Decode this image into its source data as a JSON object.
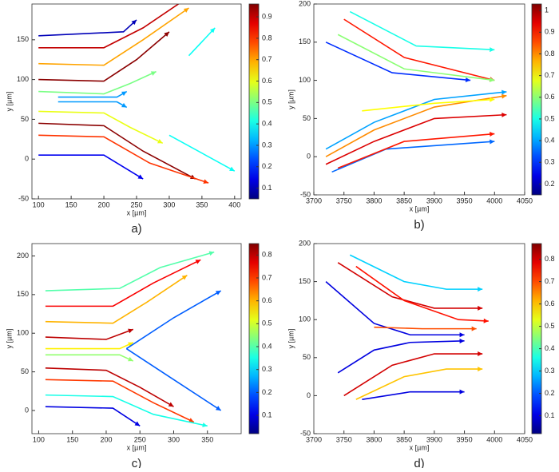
{
  "chart_data": [
    {
      "type": "streamline",
      "caption": "a)",
      "xlabel": "x [µm]",
      "ylabel": "y [µm]",
      "xlim": [
        90,
        410
      ],
      "ylim": [
        -50,
        195
      ],
      "xticks": [
        100,
        150,
        200,
        250,
        300,
        350,
        400
      ],
      "yticks": [
        -50,
        0,
        50,
        100,
        150
      ],
      "clim": [
        0.05,
        0.96
      ],
      "cticks": [
        0.1,
        0.2,
        0.3,
        0.4,
        0.5,
        0.6,
        0.7,
        0.8,
        0.9
      ],
      "lines": [
        {
          "x": [
            100,
            230,
            250
          ],
          "y": [
            155,
            160,
            175
          ],
          "value": 0.1
        },
        {
          "x": [
            100,
            200,
            260,
            350
          ],
          "y": [
            140,
            140,
            165,
            215
          ],
          "value": 0.9
        },
        {
          "x": [
            100,
            200,
            260,
            330
          ],
          "y": [
            120,
            118,
            150,
            190
          ],
          "value": 0.7
        },
        {
          "x": [
            100,
            200,
            250,
            300
          ],
          "y": [
            100,
            98,
            125,
            160
          ],
          "value": 0.95
        },
        {
          "x": [
            100,
            200,
            240,
            280
          ],
          "y": [
            85,
            82,
            95,
            110
          ],
          "value": 0.5
        },
        {
          "x": [
            130,
            220,
            235
          ],
          "y": [
            78,
            78,
            85
          ],
          "value": 0.3
        },
        {
          "x": [
            130,
            220,
            235
          ],
          "y": [
            72,
            72,
            65
          ],
          "value": 0.3
        },
        {
          "x": [
            100,
            200,
            240,
            290
          ],
          "y": [
            60,
            58,
            40,
            20
          ],
          "value": 0.6
        },
        {
          "x": [
            100,
            200,
            260,
            340
          ],
          "y": [
            45,
            42,
            10,
            -25
          ],
          "value": 0.95
        },
        {
          "x": [
            100,
            200,
            270,
            360
          ],
          "y": [
            30,
            28,
            -5,
            -30
          ],
          "value": 0.8
        },
        {
          "x": [
            100,
            200,
            260
          ],
          "y": [
            5,
            5,
            -25
          ],
          "value": 0.15
        },
        {
          "x": [
            300,
            400
          ],
          "y": [
            30,
            -15
          ],
          "value": 0.4
        },
        {
          "x": [
            330,
            370
          ],
          "y": [
            130,
            165
          ],
          "value": 0.4
        }
      ]
    },
    {
      "type": "streamline",
      "caption": "b)",
      "xlabel": "x [µm]",
      "ylabel": "y [µm]",
      "xlim": [
        3700,
        4050
      ],
      "ylim": [
        -50,
        200
      ],
      "xticks": [
        3700,
        3750,
        3800,
        3850,
        3900,
        3950,
        4000,
        4050
      ],
      "yticks": [
        -50,
        0,
        50,
        100,
        150,
        200
      ],
      "clim": [
        0.15,
        1.03
      ],
      "cticks": [
        0.2,
        0.3,
        0.4,
        0.5,
        0.6,
        0.7,
        0.8,
        0.9,
        1
      ],
      "lines": [
        {
          "x": [
            3750,
            3850,
            4000
          ],
          "y": [
            180,
            130,
            100
          ],
          "value": 0.9
        },
        {
          "x": [
            3740,
            3850,
            4000
          ],
          "y": [
            160,
            115,
            100
          ],
          "value": 0.6
        },
        {
          "x": [
            3760,
            3870,
            4000
          ],
          "y": [
            190,
            145,
            140
          ],
          "value": 0.5
        },
        {
          "x": [
            3720,
            3830,
            3960
          ],
          "y": [
            150,
            110,
            100
          ],
          "value": 0.3
        },
        {
          "x": [
            3720,
            3800,
            3900,
            4020
          ],
          "y": [
            -10,
            20,
            50,
            55
          ],
          "value": 0.95
        },
        {
          "x": [
            3720,
            3800,
            3900,
            4020
          ],
          "y": [
            0,
            35,
            65,
            80
          ],
          "value": 0.8
        },
        {
          "x": [
            3720,
            3800,
            3900,
            4020
          ],
          "y": [
            10,
            45,
            75,
            85
          ],
          "value": 0.4
        },
        {
          "x": [
            3730,
            3820,
            4000
          ],
          "y": [
            -20,
            10,
            20
          ],
          "value": 0.35
        },
        {
          "x": [
            3740,
            3850,
            4000
          ],
          "y": [
            -15,
            20,
            30
          ],
          "value": 0.9
        },
        {
          "x": [
            3780,
            3900,
            4000
          ],
          "y": [
            60,
            70,
            75
          ],
          "value": 0.7
        }
      ]
    },
    {
      "type": "streamline",
      "caption": "c)",
      "xlabel": "x [µm]",
      "ylabel": "y [µm]",
      "xlim": [
        90,
        400
      ],
      "ylim": [
        -30,
        216
      ],
      "xticks": [
        100,
        150,
        200,
        250,
        300,
        350
      ],
      "yticks": [
        0,
        50,
        100,
        150,
        200
      ],
      "clim": [
        0.02,
        0.85
      ],
      "cticks": [
        0.1,
        0.2,
        0.3,
        0.4,
        0.5,
        0.6,
        0.7,
        0.8
      ],
      "lines": [
        {
          "x": [
            110,
            220,
            280,
            360
          ],
          "y": [
            155,
            158,
            185,
            205
          ],
          "value": 0.4
        },
        {
          "x": [
            110,
            210,
            270,
            340
          ],
          "y": [
            135,
            135,
            165,
            195
          ],
          "value": 0.75
        },
        {
          "x": [
            110,
            210,
            260,
            320
          ],
          "y": [
            115,
            113,
            140,
            175
          ],
          "value": 0.6
        },
        {
          "x": [
            110,
            200,
            240
          ],
          "y": [
            95,
            92,
            105
          ],
          "value": 0.8
        },
        {
          "x": [
            110,
            220,
            240
          ],
          "y": [
            80,
            80,
            88
          ],
          "value": 0.55
        },
        {
          "x": [
            110,
            220,
            240
          ],
          "y": [
            72,
            72,
            64
          ],
          "value": 0.45
        },
        {
          "x": [
            110,
            200,
            250,
            300
          ],
          "y": [
            55,
            52,
            30,
            5
          ],
          "value": 0.8
        },
        {
          "x": [
            110,
            210,
            270,
            330
          ],
          "y": [
            40,
            38,
            10,
            -15
          ],
          "value": 0.7
        },
        {
          "x": [
            110,
            210,
            270,
            350
          ],
          "y": [
            20,
            18,
            -5,
            -20
          ],
          "value": 0.35
        },
        {
          "x": [
            110,
            210,
            250
          ],
          "y": [
            5,
            3,
            -20
          ],
          "value": 0.1
        },
        {
          "x": [
            230,
            300,
            370
          ],
          "y": [
            80,
            40,
            0
          ],
          "value": 0.2
        },
        {
          "x": [
            230,
            300,
            370
          ],
          "y": [
            80,
            120,
            155
          ],
          "value": 0.2
        }
      ]
    },
    {
      "type": "streamline",
      "caption": "d)",
      "xlabel": "x [µm]",
      "ylabel": "y [µm]",
      "xlim": [
        3700,
        4050
      ],
      "ylim": [
        -50,
        200
      ],
      "xticks": [
        3700,
        3750,
        3800,
        3850,
        3900,
        3950,
        4000,
        4050
      ],
      "yticks": [
        -50,
        0,
        50,
        100,
        150,
        200
      ],
      "clim": [
        0.02,
        0.87
      ],
      "cticks": [
        0.1,
        0.2,
        0.3,
        0.4,
        0.5,
        0.6,
        0.7,
        0.8
      ],
      "lines": [
        {
          "x": [
            3720,
            3800,
            3860,
            3950
          ],
          "y": [
            150,
            95,
            80,
            80
          ],
          "value": 0.1
        },
        {
          "x": [
            3740,
            3830,
            3900,
            3980
          ],
          "y": [
            175,
            130,
            115,
            115
          ],
          "value": 0.8
        },
        {
          "x": [
            3760,
            3850,
            3920,
            3980
          ],
          "y": [
            185,
            150,
            140,
            140
          ],
          "value": 0.3
        },
        {
          "x": [
            3770,
            3850,
            3940,
            3990
          ],
          "y": [
            170,
            125,
            100,
            98
          ],
          "value": 0.75
        },
        {
          "x": [
            3740,
            3800,
            3860,
            3950
          ],
          "y": [
            30,
            60,
            70,
            72
          ],
          "value": 0.1
        },
        {
          "x": [
            3750,
            3830,
            3900,
            3980
          ],
          "y": [
            0,
            40,
            55,
            55
          ],
          "value": 0.8
        },
        {
          "x": [
            3770,
            3850,
            3920,
            3980
          ],
          "y": [
            -5,
            25,
            35,
            35
          ],
          "value": 0.6
        },
        {
          "x": [
            3780,
            3860,
            3950
          ],
          "y": [
            -5,
            5,
            5
          ],
          "value": 0.1
        },
        {
          "x": [
            3800,
            3880,
            3970
          ],
          "y": [
            90,
            88,
            88
          ],
          "value": 0.7
        }
      ]
    }
  ]
}
